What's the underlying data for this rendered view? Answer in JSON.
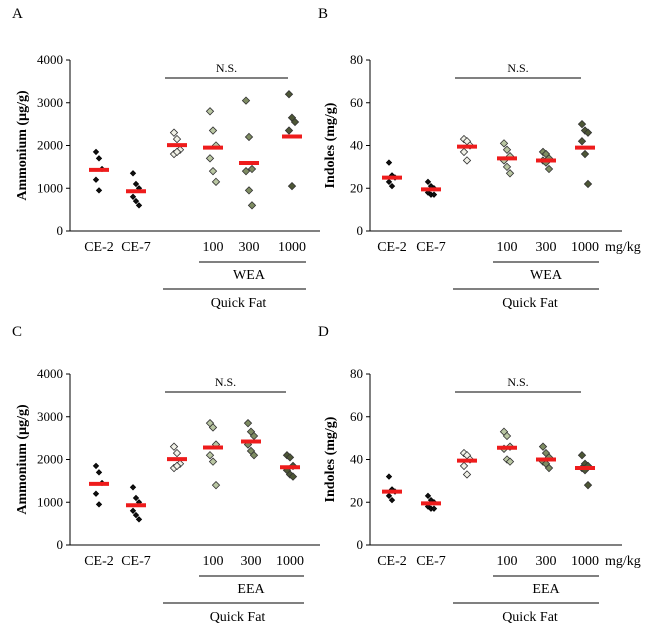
{
  "colors": {
    "mean_bar": "#ee1c1c",
    "ce": "#111111",
    "qf": "#f0f0e6",
    "low": "#b9c6a2",
    "mid": "#7e8c62",
    "high": "#4d5636"
  },
  "chart_data": [
    {
      "panel": "A",
      "type": "scatter",
      "ylabel": "Ammonium (µg/g)",
      "ylim": [
        0,
        4000
      ],
      "yticks": [
        "0",
        "1000",
        "2000",
        "3000",
        "4000"
      ],
      "categories": [
        "CE-2",
        "CE-7",
        "",
        "100",
        "300",
        "1000"
      ],
      "unit_label": "",
      "extract": "WEA",
      "group": "Quick Fat",
      "significance": "N.S.",
      "series": [
        {
          "category": "CE-2",
          "color": "ce",
          "marker": "diamond",
          "values": [
            1850,
            1700,
            1450,
            1200,
            950
          ],
          "mean": 1430
        },
        {
          "category": "CE-7",
          "color": "ce",
          "marker": "diamond",
          "values": [
            1350,
            1100,
            1000,
            800,
            700,
            600
          ],
          "mean": 930
        },
        {
          "category": "",
          "color": "qf",
          "marker": "diamond",
          "values": [
            2300,
            2150,
            1900,
            1800,
            1850
          ],
          "mean": 2010
        },
        {
          "category": "100",
          "color": "low",
          "marker": "diamond",
          "values": [
            2800,
            2350,
            2000,
            1700,
            1400,
            1150
          ],
          "mean": 1950
        },
        {
          "category": "300",
          "color": "mid",
          "marker": "diamond",
          "values": [
            3050,
            2200,
            1450,
            1400,
            950,
            600
          ],
          "mean": 1590
        },
        {
          "category": "1000",
          "color": "high",
          "marker": "diamond",
          "values": [
            3200,
            2650,
            2550,
            2350,
            1050
          ],
          "mean": 2210
        }
      ]
    },
    {
      "panel": "B",
      "type": "scatter",
      "ylabel": "Indoles (mg/g)",
      "ylim": [
        0,
        80
      ],
      "yticks": [
        "0",
        "20",
        "40",
        "60",
        "80"
      ],
      "categories": [
        "CE-2",
        "CE-7",
        "",
        "100",
        "300",
        "1000"
      ],
      "unit_label": "mg/kg",
      "extract": "WEA",
      "group": "Quick Fat",
      "significance": "N.S.",
      "series": [
        {
          "category": "CE-2",
          "color": "ce",
          "marker": "diamond",
          "values": [
            32,
            26,
            25,
            23,
            21
          ],
          "mean": 25
        },
        {
          "category": "CE-7",
          "color": "ce",
          "marker": "diamond",
          "values": [
            23,
            21,
            20,
            18,
            17,
            17
          ],
          "mean": 19.5
        },
        {
          "category": "",
          "color": "qf",
          "marker": "diamond",
          "values": [
            43,
            42,
            40,
            37,
            33
          ],
          "mean": 39.5
        },
        {
          "category": "100",
          "color": "low",
          "marker": "diamond",
          "values": [
            41,
            38,
            35,
            33,
            30,
            27
          ],
          "mean": 34
        },
        {
          "category": "300",
          "color": "mid",
          "marker": "diamond",
          "values": [
            37,
            36,
            34,
            33,
            32,
            29
          ],
          "mean": 33
        },
        {
          "category": "1000",
          "color": "high",
          "marker": "diamond",
          "values": [
            50,
            47,
            46,
            42,
            36,
            22
          ],
          "mean": 39
        }
      ]
    },
    {
      "panel": "C",
      "type": "scatter",
      "ylabel": "Ammonium (µg/g)",
      "ylim": [
        0,
        4000
      ],
      "yticks": [
        "0",
        "1000",
        "2000",
        "3000",
        "4000"
      ],
      "categories": [
        "CE-2",
        "CE-7",
        "",
        "100",
        "300",
        "1000"
      ],
      "unit_label": "",
      "extract": "EEA",
      "group": "Quick Fat",
      "significance": "N.S.",
      "series": [
        {
          "category": "CE-2",
          "color": "ce",
          "marker": "diamond",
          "values": [
            1850,
            1700,
            1450,
            1200,
            950
          ],
          "mean": 1430
        },
        {
          "category": "CE-7",
          "color": "ce",
          "marker": "diamond",
          "values": [
            1350,
            1100,
            1000,
            800,
            700,
            600
          ],
          "mean": 930
        },
        {
          "category": "",
          "color": "qf",
          "marker": "diamond",
          "values": [
            2300,
            2150,
            1900,
            1800,
            1850
          ],
          "mean": 2010
        },
        {
          "category": "100",
          "color": "low",
          "marker": "diamond",
          "values": [
            2850,
            2750,
            2350,
            2100,
            1950,
            1400
          ],
          "mean": 2280
        },
        {
          "category": "300",
          "color": "mid",
          "marker": "diamond",
          "values": [
            2850,
            2650,
            2550,
            2350,
            2200,
            2100
          ],
          "mean": 2420
        },
        {
          "category": "1000",
          "color": "high",
          "marker": "diamond",
          "values": [
            2100,
            2050,
            1850,
            1750,
            1650,
            1600
          ],
          "mean": 1820
        }
      ]
    },
    {
      "panel": "D",
      "type": "scatter",
      "ylabel": "Indoles (mg/g)",
      "ylim": [
        0,
        80
      ],
      "yticks": [
        "0",
        "20",
        "40",
        "60",
        "80"
      ],
      "categories": [
        "CE-2",
        "CE-7",
        "",
        "100",
        "300",
        "1000"
      ],
      "unit_label": "mg/kg",
      "extract": "EEA",
      "group": "Quick Fat",
      "significance": "N.S.",
      "series": [
        {
          "category": "CE-2",
          "color": "ce",
          "marker": "diamond",
          "values": [
            32,
            26,
            25,
            23,
            21
          ],
          "mean": 25
        },
        {
          "category": "CE-7",
          "color": "ce",
          "marker": "diamond",
          "values": [
            23,
            21,
            20,
            18,
            17,
            17
          ],
          "mean": 19.5
        },
        {
          "category": "",
          "color": "qf",
          "marker": "diamond",
          "values": [
            43,
            42,
            40,
            37,
            33
          ],
          "mean": 39.5
        },
        {
          "category": "100",
          "color": "low",
          "marker": "diamond",
          "values": [
            53,
            51,
            46,
            45,
            40,
            39
          ],
          "mean": 45.5
        },
        {
          "category": "300",
          "color": "mid",
          "marker": "diamond",
          "values": [
            46,
            43,
            41,
            39,
            38,
            36
          ],
          "mean": 40
        },
        {
          "category": "1000",
          "color": "high",
          "marker": "diamond",
          "values": [
            42,
            38,
            37,
            36,
            35,
            28
          ],
          "mean": 36
        }
      ]
    }
  ]
}
